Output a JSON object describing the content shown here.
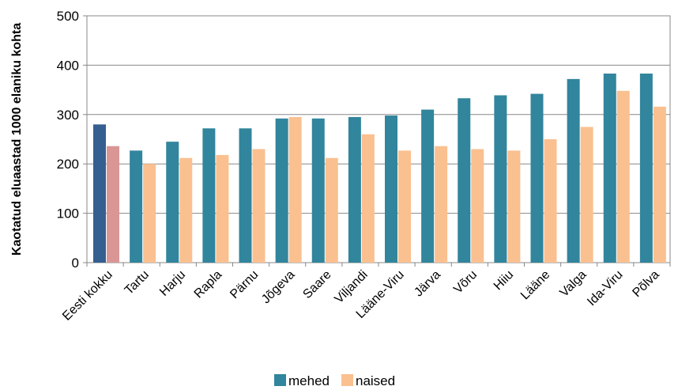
{
  "chart_data": {
    "type": "bar",
    "ylabel": "Kaotatud eluaastad  1000 elaniku  kohta",
    "ylim": [
      0,
      500
    ],
    "yticks": [
      0,
      100,
      200,
      300,
      400,
      500
    ],
    "grid": true,
    "legend_position": "bottom",
    "categories": [
      "Eesti kokku",
      "Tartu",
      "Harju",
      "Rapla",
      "Pärnu",
      "Jõgeva",
      "Saare",
      "Viljandi",
      "Lääne-Viru",
      "Järva",
      "Võru",
      "Hiiu",
      "Lääne",
      "Valga",
      "Ida-Viru",
      "Põlva"
    ],
    "series": [
      {
        "name": "mehed",
        "color": "#31859C",
        "highlight_color": "#365F91",
        "values": [
          280,
          227,
          245,
          272,
          272,
          292,
          292,
          295,
          298,
          310,
          333,
          339,
          342,
          372,
          383,
          383
        ]
      },
      {
        "name": "naised",
        "color": "#FAC090",
        "highlight_color": "#D99694",
        "values": [
          236,
          200,
          212,
          218,
          230,
          295,
          212,
          260,
          227,
          236,
          230,
          227,
          250,
          275,
          348,
          316
        ]
      }
    ],
    "highlight_category": "Eesti kokku"
  }
}
